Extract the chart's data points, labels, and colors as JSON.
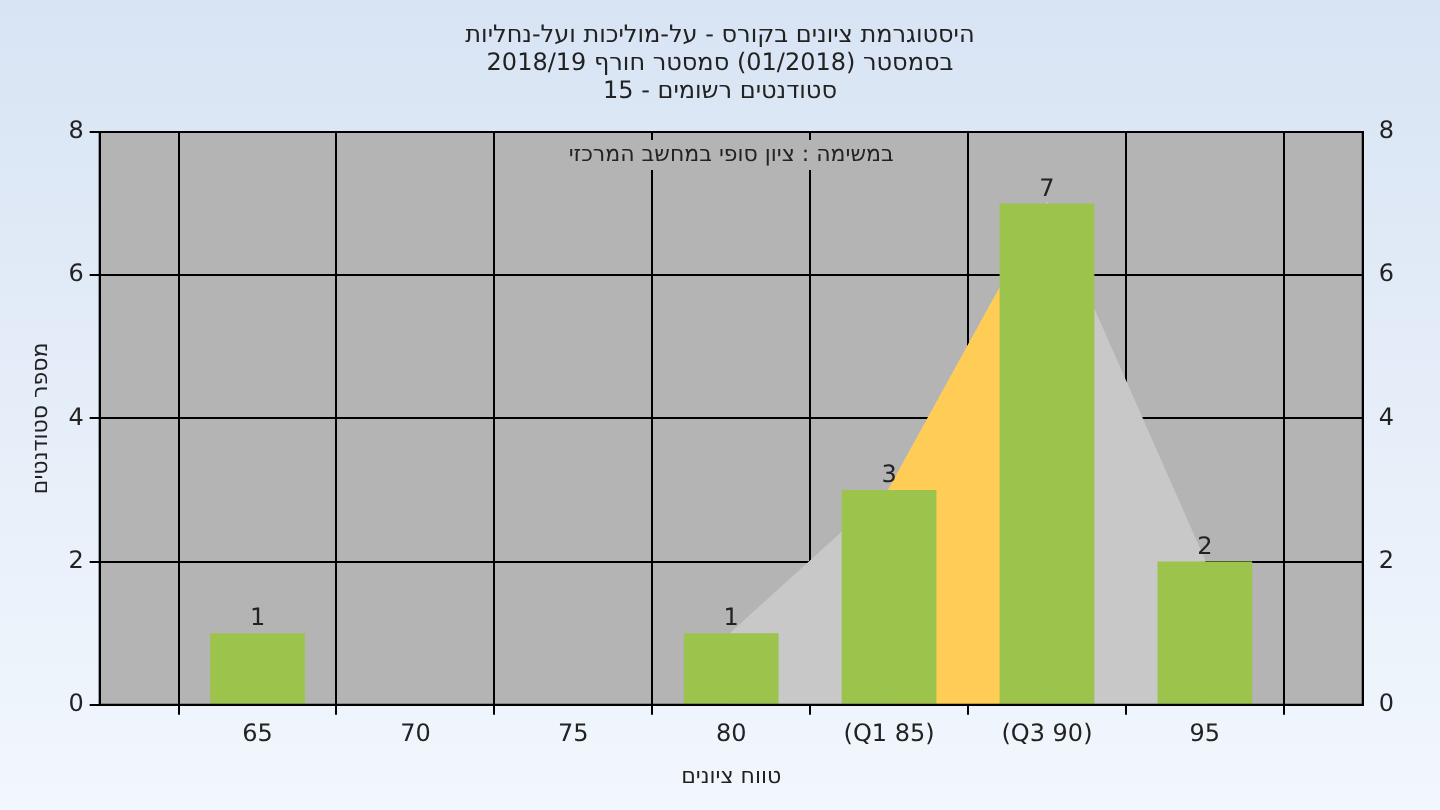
{
  "chart_data": {
    "type": "bar",
    "title": "היסטוגרמת ציונים בקורס - על-מוליכות ועל-נחליות",
    "subtitle": "בסמסטר  (01/2018)  סמסטר חורף 2018/19",
    "annotations": [
      "סטודנטים רשומים - 15",
      "במשימה : ציון סופי במחשב המרכזי"
    ],
    "xlabel": "טווח ציונים",
    "ylabel": "מספר סטודנטים",
    "categories": [
      null,
      "65",
      "70",
      "75",
      "80",
      "(Q1 85)",
      "(Q3 90)",
      "95",
      null
    ],
    "series": [
      {
        "type": "area",
        "color": "#c8c8c8",
        "values": [
          null,
          null,
          null,
          null,
          1,
          3,
          7,
          2,
          null
        ]
      },
      {
        "type": "area",
        "color": "#ffcc55",
        "values": [
          null,
          null,
          null,
          null,
          null,
          3,
          7,
          null,
          null
        ]
      },
      {
        "color": "#9cc34c",
        "values": [
          null,
          1,
          0,
          0,
          1,
          3,
          7,
          2,
          null
        ],
        "value_labels": [
          null,
          "1",
          null,
          null,
          "1",
          "3",
          "7",
          "2",
          null
        ]
      }
    ],
    "ylim": [
      0,
      8
    ],
    "yticks": [
      0,
      2,
      4,
      6,
      8
    ],
    "y2lim": [
      0,
      8
    ],
    "y2ticks": [
      0,
      2,
      4,
      6,
      8
    ],
    "grid": true
  }
}
